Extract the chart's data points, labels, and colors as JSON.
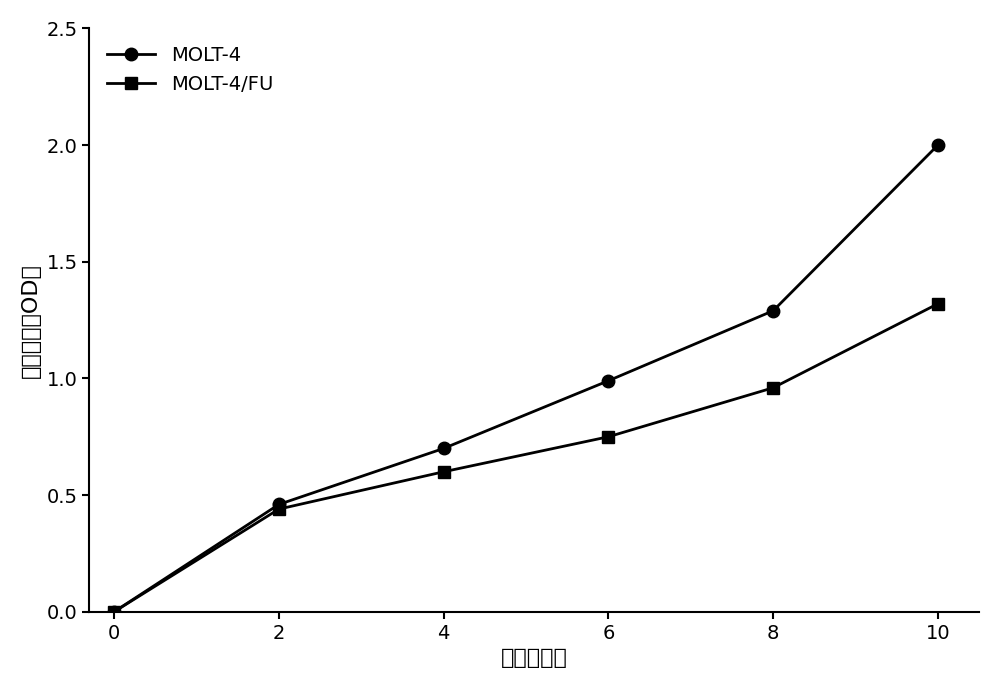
{
  "molt4_x": [
    0,
    2,
    4,
    6,
    8,
    10
  ],
  "molt4_y": [
    0.0,
    0.46,
    0.7,
    0.99,
    1.29,
    2.0
  ],
  "molt4fu_x": [
    0,
    2,
    4,
    6,
    8,
    10
  ],
  "molt4fu_y": [
    0.0,
    0.44,
    0.6,
    0.75,
    0.96,
    1.32
  ],
  "line_color": "#000000",
  "marker_molt4": "o",
  "marker_molt4fu": "s",
  "legend_labels": [
    "MOLT-4",
    "MOLT-4/FU"
  ],
  "xlabel": "时间（天）",
  "ylabel": "光吸收值（OD）",
  "xlim": [
    -0.3,
    10.5
  ],
  "ylim": [
    0.0,
    2.5
  ],
  "xticks": [
    0,
    2,
    4,
    6,
    8,
    10
  ],
  "yticks": [
    0.0,
    0.5,
    1.0,
    1.5,
    2.0,
    2.5
  ],
  "label_fontsize": 16,
  "tick_fontsize": 14,
  "legend_fontsize": 14,
  "linewidth": 2.0,
  "markersize": 9,
  "background_color": "#ffffff"
}
